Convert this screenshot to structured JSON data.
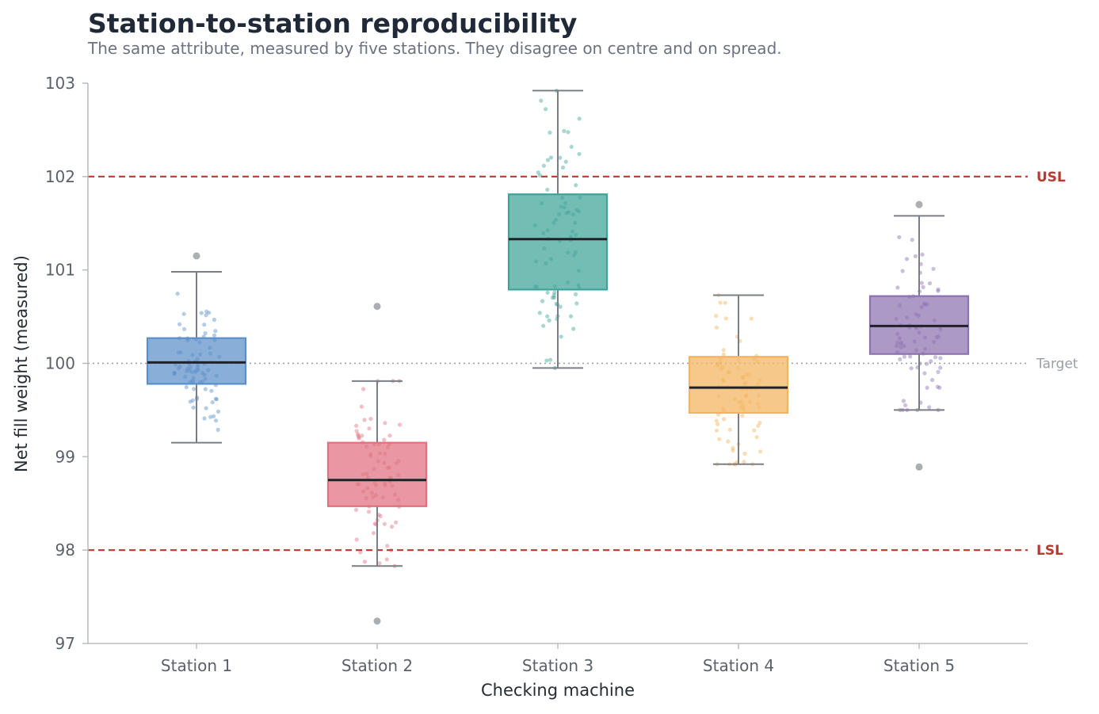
{
  "chart_data": {
    "type": "box",
    "title": "Station-to-station reproducibility",
    "subtitle": "The same attribute, measured by five stations. They disagree on centre and on spread.",
    "xlabel": "Checking machine",
    "ylabel": "Net fill weight (measured)",
    "ylim": [
      97,
      103
    ],
    "yticks": [
      97,
      98,
      99,
      100,
      101,
      102,
      103
    ],
    "grid": false,
    "categories": [
      "Station 1",
      "Station 2",
      "Station 3",
      "Station 4",
      "Station 5"
    ],
    "boxes": [
      {
        "name": "Station 1",
        "color": "#5b8fc9",
        "whisker_low": 99.15,
        "q1": 99.78,
        "median": 100.01,
        "q3": 100.27,
        "whisker_high": 100.98,
        "outliers": [
          101.15
        ]
      },
      {
        "name": "Station 2",
        "color": "#e07080",
        "whisker_low": 97.83,
        "q1": 98.47,
        "median": 98.75,
        "q3": 99.15,
        "whisker_high": 99.81,
        "outliers": [
          100.61,
          97.24
        ]
      },
      {
        "name": "Station 3",
        "color": "#3ea399",
        "whisker_low": 99.95,
        "q1": 100.79,
        "median": 101.33,
        "q3": 101.81,
        "whisker_high": 102.92,
        "outliers": []
      },
      {
        "name": "Station 4",
        "color": "#f2b45e",
        "whisker_low": 98.92,
        "q1": 99.47,
        "median": 99.74,
        "q3": 100.07,
        "whisker_high": 100.73,
        "outliers": []
      },
      {
        "name": "Station 5",
        "color": "#8c72b0",
        "whisker_low": 99.5,
        "q1": 100.1,
        "median": 100.4,
        "q3": 100.72,
        "whisker_high": 101.58,
        "outliers": [
          101.7,
          98.89
        ]
      }
    ],
    "reference_lines": [
      {
        "label": "USL",
        "value": 102,
        "color": "#b83a2e",
        "style": "dashed"
      },
      {
        "label": "LSL",
        "value": 98,
        "color": "#b83a2e",
        "style": "dashed"
      },
      {
        "label": "Target",
        "value": 100,
        "color": "#9aa0a6",
        "style": "dotted"
      }
    ]
  }
}
